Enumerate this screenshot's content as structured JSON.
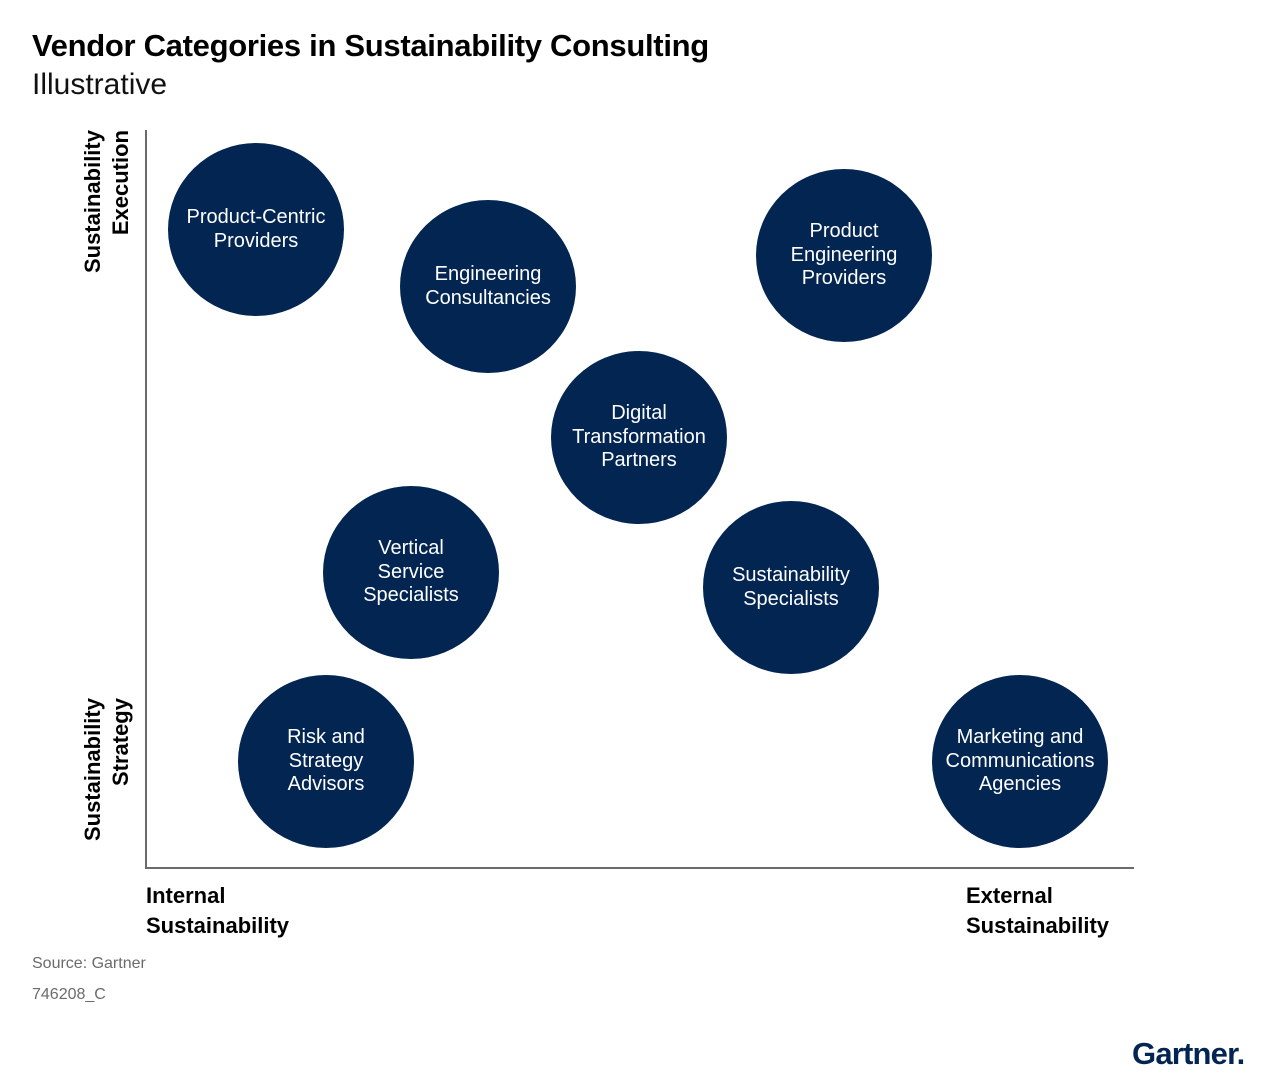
{
  "header": {
    "title": "Vendor Categories in Sustainability Consulting",
    "subtitle": "Illustrative"
  },
  "axes": {
    "y_top": [
      "Sustainability",
      "Execution"
    ],
    "y_bottom": [
      "Sustainability",
      "Strategy"
    ],
    "x_left": [
      "Internal",
      "Sustainability"
    ],
    "x_right": [
      "External",
      "Sustainability"
    ]
  },
  "bubbles": [
    {
      "label": "Product-Centric Providers"
    },
    {
      "label": "Engineering Consultancies"
    },
    {
      "label": "Product Engineering Providers"
    },
    {
      "label": "Digital Transformation Partners"
    },
    {
      "label": "Vertical Service Specialists"
    },
    {
      "label": "Sustainability Specialists"
    },
    {
      "label": "Risk and Strategy Advisors"
    },
    {
      "label": "Marketing and Communications Agencies"
    }
  ],
  "footer": {
    "source": "Source: Gartner",
    "code": "746208_C",
    "logo": "Gartner."
  },
  "colors": {
    "bubble": "#022552",
    "axis": "#6b6b6b"
  }
}
